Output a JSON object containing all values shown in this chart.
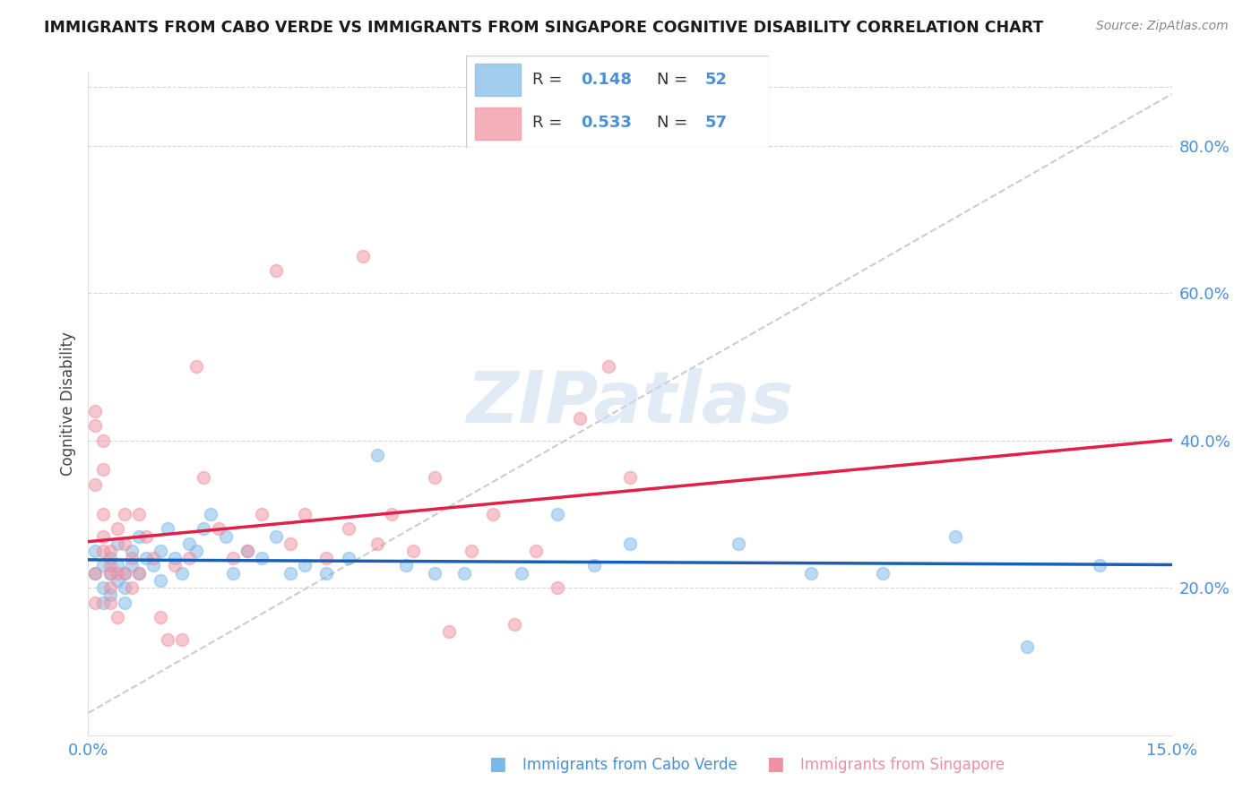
{
  "title": "IMMIGRANTS FROM CABO VERDE VS IMMIGRANTS FROM SINGAPORE COGNITIVE DISABILITY CORRELATION CHART",
  "source": "Source: ZipAtlas.com",
  "xlabel_blue": "Immigrants from Cabo Verde",
  "xlabel_pink": "Immigrants from Singapore",
  "ylabel": "Cognitive Disability",
  "xlim": [
    0.0,
    0.15
  ],
  "ylim": [
    0.0,
    0.9
  ],
  "yticks_right": [
    0.2,
    0.4,
    0.6,
    0.8
  ],
  "ytick_labels_right": [
    "20.0%",
    "40.0%",
    "60.0%",
    "80.0%"
  ],
  "R_blue": 0.148,
  "N_blue": 52,
  "R_pink": 0.533,
  "N_pink": 57,
  "color_blue": "#7BB8E8",
  "color_pink": "#F090A0",
  "color_blue_line": "#1A5FB4",
  "color_pink_line": "#E0204A",
  "color_diag": "#C0C0C0",
  "watermark": "ZIPatlas",
  "blue_x": [
    0.001,
    0.001,
    0.002,
    0.002,
    0.002,
    0.003,
    0.003,
    0.003,
    0.004,
    0.004,
    0.004,
    0.005,
    0.005,
    0.005,
    0.006,
    0.006,
    0.007,
    0.007,
    0.008,
    0.009,
    0.01,
    0.01,
    0.011,
    0.012,
    0.013,
    0.014,
    0.015,
    0.016,
    0.017,
    0.019,
    0.02,
    0.022,
    0.024,
    0.026,
    0.028,
    0.03,
    0.033,
    0.036,
    0.04,
    0.044,
    0.048,
    0.052,
    0.06,
    0.065,
    0.07,
    0.075,
    0.09,
    0.1,
    0.11,
    0.12,
    0.13,
    0.14
  ],
  "blue_y": [
    0.22,
    0.25,
    0.2,
    0.23,
    0.18,
    0.24,
    0.22,
    0.19,
    0.23,
    0.21,
    0.26,
    0.2,
    0.22,
    0.18,
    0.25,
    0.23,
    0.22,
    0.27,
    0.24,
    0.23,
    0.21,
    0.25,
    0.28,
    0.24,
    0.22,
    0.26,
    0.25,
    0.28,
    0.3,
    0.27,
    0.22,
    0.25,
    0.24,
    0.27,
    0.22,
    0.23,
    0.22,
    0.24,
    0.38,
    0.23,
    0.22,
    0.22,
    0.22,
    0.3,
    0.23,
    0.26,
    0.26,
    0.22,
    0.22,
    0.27,
    0.12,
    0.23
  ],
  "pink_x": [
    0.001,
    0.001,
    0.001,
    0.001,
    0.001,
    0.002,
    0.002,
    0.002,
    0.002,
    0.002,
    0.003,
    0.003,
    0.003,
    0.003,
    0.003,
    0.004,
    0.004,
    0.004,
    0.005,
    0.005,
    0.005,
    0.006,
    0.006,
    0.007,
    0.007,
    0.008,
    0.009,
    0.01,
    0.011,
    0.012,
    0.013,
    0.014,
    0.015,
    0.016,
    0.018,
    0.02,
    0.022,
    0.024,
    0.026,
    0.028,
    0.03,
    0.033,
    0.036,
    0.038,
    0.04,
    0.042,
    0.045,
    0.048,
    0.05,
    0.053,
    0.056,
    0.059,
    0.062,
    0.065,
    0.068,
    0.072,
    0.075
  ],
  "pink_y": [
    0.34,
    0.22,
    0.18,
    0.44,
    0.42,
    0.36,
    0.4,
    0.25,
    0.3,
    0.27,
    0.25,
    0.23,
    0.2,
    0.22,
    0.18,
    0.28,
    0.22,
    0.16,
    0.3,
    0.26,
    0.22,
    0.24,
    0.2,
    0.3,
    0.22,
    0.27,
    0.24,
    0.16,
    0.13,
    0.23,
    0.13,
    0.24,
    0.5,
    0.35,
    0.28,
    0.24,
    0.25,
    0.3,
    0.63,
    0.26,
    0.3,
    0.24,
    0.28,
    0.65,
    0.26,
    0.3,
    0.25,
    0.35,
    0.14,
    0.25,
    0.3,
    0.15,
    0.25,
    0.2,
    0.43,
    0.5,
    0.35
  ]
}
